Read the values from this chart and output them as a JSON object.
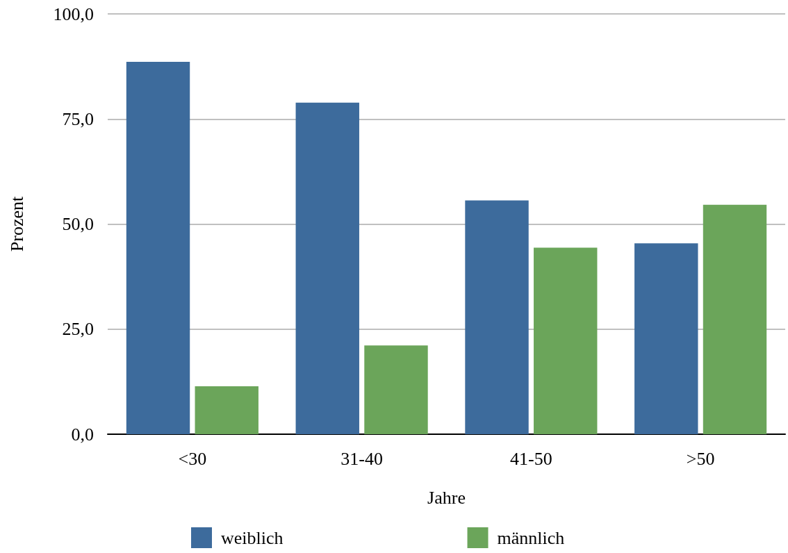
{
  "chart_data": {
    "type": "bar",
    "xlabel": "Jahre",
    "ylabel": "Prozent",
    "categories": [
      "<30",
      "31-40",
      "41-50",
      ">50"
    ],
    "series": [
      {
        "name": "weiblich",
        "color": "#3d6b9c",
        "values": [
          88.6,
          78.9,
          55.6,
          45.4
        ]
      },
      {
        "name": "männlich",
        "color": "#6ba55a",
        "values": [
          11.4,
          21.1,
          44.4,
          54.6
        ]
      }
    ],
    "ylim": [
      0,
      100
    ],
    "yticks": [
      {
        "value": 0,
        "label": "0,0"
      },
      {
        "value": 25,
        "label": "25,0"
      },
      {
        "value": 50,
        "label": "50,0"
      },
      {
        "value": 75,
        "label": "75,0"
      },
      {
        "value": 100,
        "label": "100,0"
      }
    ],
    "grid": "y",
    "legend": "bottom"
  }
}
